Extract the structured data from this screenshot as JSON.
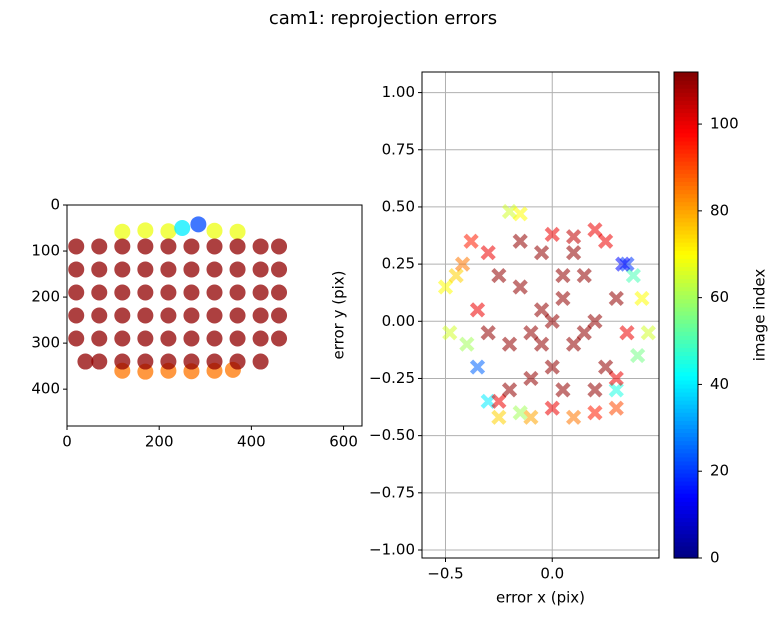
{
  "title": "cam1: reprojection errors",
  "chart_data": [
    {
      "type": "scatter",
      "marker": "circle",
      "xlim": [
        0,
        640
      ],
      "ylim": [
        480,
        0
      ],
      "xticks": [
        0,
        200,
        400,
        600
      ],
      "yticks": [
        0,
        100,
        200,
        300,
        400
      ],
      "x": [
        120,
        170,
        220,
        320,
        370,
        250,
        285,
        120,
        170,
        220,
        270,
        320,
        360,
        20,
        70,
        120,
        170,
        220,
        270,
        320,
        370,
        420,
        460,
        20,
        70,
        120,
        170,
        220,
        270,
        320,
        370,
        420,
        460,
        20,
        70,
        120,
        170,
        220,
        270,
        320,
        370,
        420,
        460,
        20,
        70,
        120,
        170,
        220,
        270,
        320,
        370,
        420,
        460,
        20,
        70,
        120,
        170,
        220,
        270,
        320,
        370,
        420,
        460,
        40,
        70,
        120,
        170,
        220,
        270,
        320,
        370,
        420
      ],
      "y": [
        58,
        55,
        57,
        56,
        58,
        50,
        42,
        360,
        362,
        360,
        361,
        360,
        358,
        90,
        90,
        90,
        90,
        90,
        90,
        90,
        90,
        90,
        90,
        140,
        140,
        140,
        140,
        140,
        140,
        140,
        140,
        140,
        140,
        190,
        190,
        190,
        190,
        190,
        190,
        190,
        190,
        190,
        190,
        240,
        240,
        240,
        240,
        240,
        240,
        240,
        240,
        240,
        240,
        290,
        290,
        290,
        290,
        290,
        290,
        290,
        290,
        290,
        290,
        340,
        340,
        340,
        340,
        340,
        340,
        340,
        340,
        340
      ],
      "c": [
        68,
        68,
        68,
        68,
        68,
        40,
        22,
        85,
        85,
        85,
        85,
        85,
        85,
        110,
        110,
        110,
        110,
        110,
        110,
        110,
        110,
        110,
        110,
        110,
        110,
        110,
        110,
        110,
        110,
        110,
        110,
        110,
        110,
        110,
        110,
        110,
        110,
        110,
        110,
        110,
        110,
        110,
        110,
        110,
        110,
        110,
        110,
        110,
        110,
        110,
        110,
        110,
        110,
        110,
        110,
        110,
        110,
        110,
        110,
        110,
        110,
        110,
        110,
        110,
        110,
        110,
        110,
        110,
        110,
        110,
        110,
        110
      ]
    },
    {
      "type": "scatter",
      "marker": "x",
      "grid": true,
      "xlabel": "error x (pix)",
      "ylabel": "error y (pix)",
      "xlim": [
        -0.61,
        0.5
      ],
      "ylim": [
        -1.035,
        1.09
      ],
      "xticks": [
        {
          "value": -0.5,
          "label": "−0.5"
        },
        {
          "value": 0,
          "label": "0.0"
        }
      ],
      "yticks": [
        {
          "value": -1,
          "label": "−1.00"
        },
        {
          "value": -0.75,
          "label": "−0.75"
        },
        {
          "value": -0.5,
          "label": "−0.50"
        },
        {
          "value": -0.25,
          "label": "−0.25"
        },
        {
          "value": 0,
          "label": "0.00"
        },
        {
          "value": 0.25,
          "label": "0.25"
        },
        {
          "value": 0.5,
          "label": "0.50"
        },
        {
          "value": 0.75,
          "label": "0.75"
        },
        {
          "value": 1,
          "label": "1.00"
        }
      ],
      "x": [
        -0.5,
        -0.45,
        -0.48,
        -0.4,
        -0.2,
        -0.15,
        0.2,
        0.35,
        0.38,
        0.42,
        0.45,
        0.4,
        0.3,
        0.3,
        0.1,
        -0.1,
        -0.25,
        -0.3,
        -0.35,
        -0.42,
        -0.38,
        0.1,
        0.33,
        -0.15,
        0.2,
        -0.3,
        0.25,
        0.3,
        -0.25,
        0.35,
        -0.35,
        0,
        0,
        -0.05,
        0,
        -0.1,
        0.05,
        -0.15,
        0.1,
        0,
        -0.2,
        0.15,
        -0.05,
        0.2,
        -0.25,
        0.1,
        -0.1,
        0.05,
        0.25,
        -0.3,
        0.3,
        -0.2,
        0.2,
        -0.15,
        0.15,
        -0.05,
        0.05
      ],
      "y": [
        0.15,
        0.2,
        -0.05,
        -0.1,
        0.48,
        0.47,
        0.4,
        0.25,
        0.2,
        0.1,
        -0.05,
        -0.15,
        -0.3,
        -0.38,
        -0.42,
        -0.42,
        -0.42,
        -0.35,
        -0.2,
        0.25,
        0.35,
        0.37,
        0.25,
        -0.4,
        -0.4,
        0.3,
        0.35,
        -0.25,
        -0.35,
        -0.05,
        0.05,
        0.38,
        -0.38,
        0.05,
        0,
        -0.05,
        0.1,
        0.15,
        -0.1,
        -0.2,
        -0.1,
        0.2,
        0.3,
        0,
        0.2,
        0.3,
        -0.25,
        -0.3,
        -0.2,
        -0.05,
        0.1,
        -0.3,
        -0.3,
        0.35,
        -0.05,
        -0.1,
        0.2
      ],
      "c": [
        70,
        75,
        65,
        60,
        65,
        70,
        100,
        20,
        50,
        70,
        65,
        55,
        45,
        90,
        85,
        80,
        75,
        40,
        25,
        85,
        95,
        105,
        15,
        60,
        95,
        100,
        100,
        100,
        100,
        100,
        100,
        100,
        100,
        110,
        110,
        110,
        110,
        110,
        110,
        110,
        110,
        110,
        110,
        110,
        110,
        110,
        110,
        110,
        110,
        110,
        110,
        110,
        110,
        110,
        110,
        110,
        110
      ],
      "colorbar": {
        "label": "image index",
        "lim": [
          0,
          112
        ],
        "ticks": [
          0,
          20,
          40,
          60,
          80,
          100
        ]
      }
    }
  ]
}
